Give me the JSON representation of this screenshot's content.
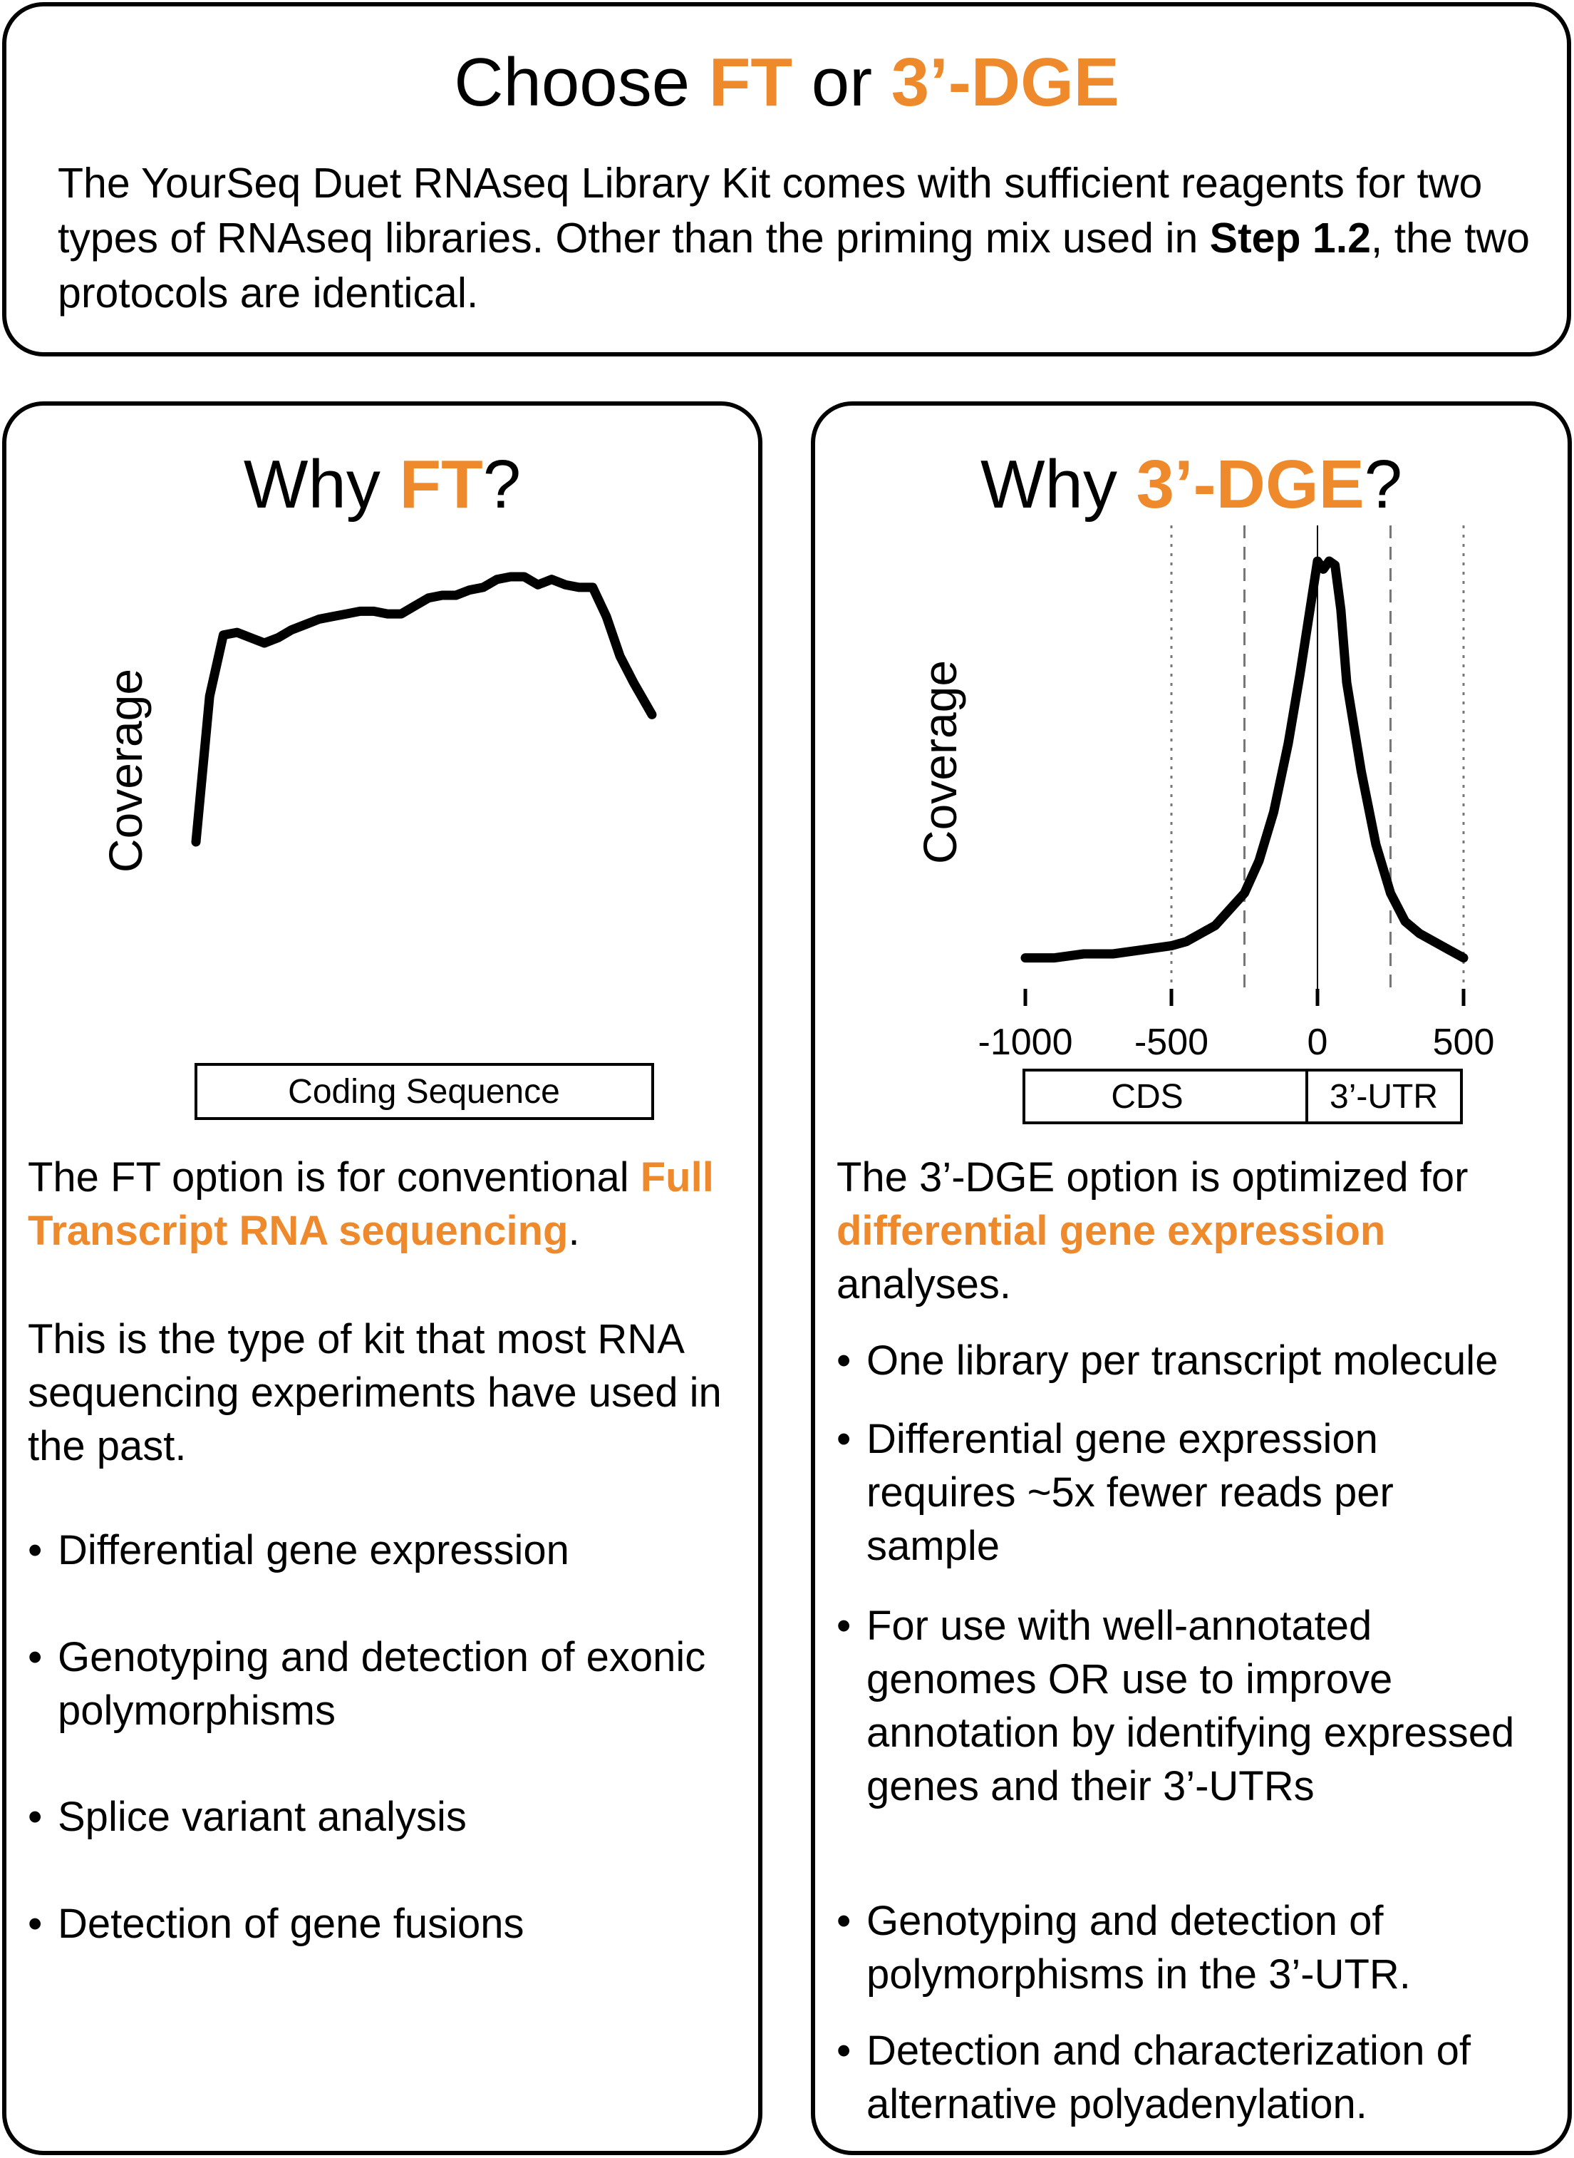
{
  "header": {
    "title_prefix": "Choose ",
    "title_ft": "FT",
    "title_or": " or ",
    "title_dge": "3’-DGE",
    "intro_part1": "The YourSeq Duet RNAseq Library Kit comes with sufficient reagents for two types of RNAseq libraries. Other than the priming mix used in ",
    "intro_step": "Step 1.2",
    "intro_part2": ", the two protocols are identical."
  },
  "ft": {
    "title_prefix": "Why ",
    "title_highlight": "FT",
    "title_suffix": "?",
    "ylabel": "Coverage",
    "box_label": "Coding Sequence",
    "desc_part1": "The FT option is for conventional ",
    "desc_highlight": "Full Transcript RNA sequencing",
    "desc_part2": ".",
    "paragraph": "This is the type of kit that most RNA sequencing experiments have used in the past.",
    "bullets": [
      "Differential gene expression",
      "Genotyping and detection of exonic polymorphisms",
      "Splice variant analysis",
      "Detection of gene fusions"
    ]
  },
  "dge": {
    "title_prefix": "Why ",
    "title_highlight": "3’-DGE",
    "title_suffix": "?",
    "ylabel": "Coverage",
    "box_cds": "CDS",
    "box_utr": "3’-UTR",
    "desc_part1": "The 3’-DGE option is optimized for ",
    "desc_highlight": "differential gene expression",
    "desc_part2": " analyses.",
    "bullets": [
      "One library per transcript molecule",
      "Differential gene expression requires ~5x fewer reads per sample",
      "For use with well-annotated genomes OR use to improve annotation by identifying expressed genes and their 3’-UTRs",
      "Genotyping and detection of polymorphisms in the 3’-UTR.",
      "Detection and characterization of alternative polyadenylation."
    ]
  },
  "chart_data": [
    {
      "type": "line",
      "title": "",
      "xlabel": "",
      "ylabel": "Coverage",
      "x": [
        0,
        0.03,
        0.06,
        0.09,
        0.12,
        0.15,
        0.18,
        0.21,
        0.24,
        0.27,
        0.3,
        0.33,
        0.36,
        0.39,
        0.42,
        0.45,
        0.48,
        0.51,
        0.54,
        0.57,
        0.6,
        0.63,
        0.66,
        0.69,
        0.72,
        0.75,
        0.78,
        0.81,
        0.84,
        0.87,
        0.9,
        0.93,
        0.96,
        1.0
      ],
      "y": [
        0.0,
        0.55,
        0.78,
        0.79,
        0.77,
        0.75,
        0.77,
        0.8,
        0.82,
        0.84,
        0.85,
        0.86,
        0.87,
        0.87,
        0.86,
        0.86,
        0.89,
        0.92,
        0.93,
        0.93,
        0.95,
        0.96,
        0.99,
        1.0,
        1.0,
        0.97,
        0.99,
        0.97,
        0.96,
        0.96,
        0.85,
        0.7,
        0.6,
        0.48
      ],
      "xlim": [
        0,
        1
      ],
      "ylim": [
        0,
        1.05
      ]
    },
    {
      "type": "line",
      "title": "",
      "xlabel": "",
      "ylabel": "Coverage",
      "x": [
        -1000,
        -900,
        -800,
        -700,
        -600,
        -500,
        -450,
        -400,
        -350,
        -300,
        -250,
        -200,
        -150,
        -100,
        -60,
        -30,
        0,
        20,
        40,
        60,
        80,
        100,
        150,
        200,
        250,
        300,
        350,
        400,
        450,
        500
      ],
      "y": [
        0.02,
        0.02,
        0.03,
        0.03,
        0.04,
        0.05,
        0.06,
        0.08,
        0.1,
        0.14,
        0.18,
        0.26,
        0.38,
        0.55,
        0.72,
        0.86,
        1.0,
        0.98,
        1.0,
        0.99,
        0.88,
        0.7,
        0.48,
        0.3,
        0.18,
        0.11,
        0.08,
        0.06,
        0.04,
        0.02
      ],
      "xticks": [
        -1000,
        -500,
        0,
        500
      ],
      "xtick_labels": [
        "-1000",
        "-500",
        "0",
        "500"
      ],
      "xlim": [
        -1000,
        500
      ],
      "ylim": [
        0,
        1.05
      ],
      "vlines_dotted": [
        -500,
        500
      ],
      "vlines_dashed": [
        -250,
        250
      ],
      "vline_solid": 0,
      "colors": {
        "line": "#000000"
      }
    }
  ]
}
